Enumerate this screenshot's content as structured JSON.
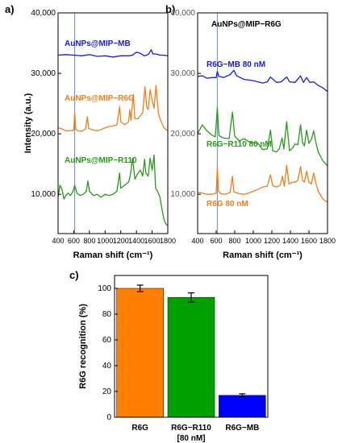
{
  "panels": {
    "a": {
      "label": "a)"
    },
    "b": {
      "label": "b)"
    },
    "c": {
      "label": "c)"
    }
  },
  "chart_data": [
    {
      "type": "line",
      "panel": "a",
      "xlabel": "Raman shift (cm⁻¹)",
      "ylabel": "Intensity (a.u.)",
      "xlim": [
        400,
        1800
      ],
      "ylim": [
        3500,
        40000
      ],
      "x_ticks": [
        400,
        600,
        800,
        1000,
        1200,
        1400,
        1600,
        1800
      ],
      "y_ticks": [
        10000,
        20000,
        30000,
        40000
      ],
      "y_tick_labels": [
        "10,000",
        "20,000",
        "30,000",
        "40,000"
      ],
      "reference_line_x": 612,
      "series": [
        {
          "name": "AuNPs@MIP−MB",
          "color": "#1a1ae6",
          "x": [
            400,
            500,
            600,
            700,
            800,
            900,
            1000,
            1100,
            1200,
            1300,
            1350,
            1400,
            1450,
            1500,
            1550,
            1590,
            1610,
            1650,
            1700,
            1750,
            1800
          ],
          "y": [
            33000,
            33100,
            33000,
            32900,
            33100,
            32800,
            32900,
            32700,
            32900,
            32900,
            33000,
            33500,
            33300,
            32900,
            33100,
            33900,
            33200,
            33200,
            33000,
            33000,
            32900
          ]
        },
        {
          "name": "AuNPs@MIP−R6G",
          "color": "#f07f1a",
          "x": [
            400,
            450,
            500,
            550,
            600,
            612,
            625,
            650,
            700,
            750,
            775,
            790,
            850,
            900,
            950,
            1000,
            1050,
            1100,
            1150,
            1185,
            1200,
            1250,
            1300,
            1315,
            1330,
            1360,
            1380,
            1420,
            1450,
            1480,
            1510,
            1530,
            1550,
            1575,
            1600,
            1625,
            1650,
            1680,
            1700,
            1750,
            1800
          ],
          "y": [
            21000,
            20800,
            20500,
            20500,
            20600,
            23500,
            20800,
            20500,
            20400,
            20800,
            22800,
            20900,
            20600,
            20500,
            20700,
            21000,
            21200,
            21300,
            21500,
            24500,
            22000,
            21500,
            22000,
            24000,
            22200,
            26500,
            22500,
            22500,
            23000,
            23500,
            27800,
            24500,
            24000,
            27300,
            25500,
            24200,
            28000,
            23500,
            22500,
            21000,
            20500
          ]
        },
        {
          "name": "AuNPs@MIP−R110",
          "color": "#2a9a1a",
          "x": [
            400,
            425,
            450,
            475,
            500,
            530,
            560,
            590,
            612,
            640,
            680,
            720,
            760,
            780,
            800,
            850,
            900,
            950,
            1000,
            1050,
            1100,
            1150,
            1185,
            1200,
            1250,
            1300,
            1320,
            1350,
            1380,
            1420,
            1450,
            1480,
            1505,
            1520,
            1550,
            1575,
            1600,
            1625,
            1645,
            1670,
            1700,
            1720,
            1740,
            1760,
            1780,
            1800
          ],
          "y": [
            9500,
            11500,
            10800,
            9200,
            9800,
            10200,
            9800,
            10500,
            11500,
            10200,
            9800,
            10000,
            10500,
            12200,
            10500,
            9800,
            10000,
            9500,
            10000,
            9800,
            10000,
            10500,
            13500,
            11000,
            11500,
            12000,
            13000,
            16000,
            12500,
            13500,
            14000,
            13000,
            15800,
            13500,
            13000,
            16000,
            14000,
            16500,
            11000,
            10500,
            9500,
            8000,
            6500,
            5500,
            5000,
            4800
          ]
        }
      ]
    },
    {
      "type": "line",
      "panel": "b",
      "title": "AuNPs@MIP−R6G",
      "xlabel": "Raman shift (cm⁻¹)",
      "xlim": [
        400,
        1800
      ],
      "ylim": [
        3500,
        40000
      ],
      "x_ticks": [
        400,
        600,
        800,
        1000,
        1200,
        1400,
        1600,
        1800
      ],
      "y_ticks": [
        10000,
        20000,
        30000,
        40000
      ],
      "y_tick_labels": [
        "10,000",
        "20,000",
        "30,000",
        "40,000"
      ],
      "reference_line_x": 612,
      "series": [
        {
          "name": "R6G−MB 80 nM",
          "color": "#1a1ae6",
          "x": [
            400,
            450,
            500,
            550,
            600,
            612,
            630,
            680,
            750,
            790,
            820,
            900,
            1000,
            1100,
            1150,
            1185,
            1250,
            1300,
            1360,
            1390,
            1450,
            1510,
            1540,
            1575,
            1610,
            1650,
            1700,
            1750,
            1800
          ],
          "y": [
            29500,
            29600,
            29200,
            29300,
            29300,
            30300,
            29500,
            29300,
            29800,
            30500,
            29600,
            29000,
            28800,
            28400,
            28600,
            29400,
            28500,
            28600,
            29400,
            28600,
            28500,
            29600,
            28500,
            29300,
            28500,
            28600,
            28000,
            27600,
            27000
          ]
        },
        {
          "name": "R6G−R110 80 nM",
          "color": "#2a9a1a",
          "x": [
            400,
            450,
            500,
            550,
            590,
            612,
            630,
            680,
            740,
            775,
            800,
            850,
            900,
            950,
            1000,
            1050,
            1100,
            1150,
            1185,
            1210,
            1250,
            1280,
            1310,
            1330,
            1360,
            1390,
            1420,
            1450,
            1480,
            1510,
            1530,
            1550,
            1575,
            1600,
            1630,
            1650,
            1680,
            1700,
            1750,
            1800
          ],
          "y": [
            20000,
            21500,
            20500,
            19800,
            19500,
            24300,
            19700,
            19300,
            19200,
            23600,
            19600,
            18800,
            19200,
            18700,
            18500,
            18400,
            17400,
            17500,
            20600,
            17200,
            17000,
            17500,
            19300,
            17500,
            22000,
            17200,
            17600,
            18300,
            18200,
            21500,
            18600,
            18000,
            20600,
            18400,
            19200,
            20500,
            18200,
            17000,
            15500,
            14700
          ]
        },
        {
          "name": "R6G 80 nM",
          "color": "#f07f1a",
          "x": [
            400,
            450,
            500,
            550,
            600,
            612,
            625,
            650,
            700,
            750,
            775,
            790,
            850,
            900,
            950,
            1000,
            1050,
            1100,
            1150,
            1185,
            1210,
            1250,
            1290,
            1315,
            1335,
            1360,
            1385,
            1420,
            1450,
            1480,
            1510,
            1530,
            1550,
            1575,
            1600,
            1625,
            1650,
            1680,
            1700,
            1750,
            1800
          ],
          "y": [
            10300,
            10200,
            10000,
            10000,
            10200,
            14500,
            10500,
            10100,
            10000,
            10300,
            13000,
            10400,
            10100,
            10000,
            10200,
            10500,
            10800,
            11200,
            11300,
            13200,
            11400,
            11200,
            11500,
            13000,
            11300,
            14800,
            11700,
            12000,
            12000,
            12300,
            14600,
            12300,
            12000,
            13800,
            12000,
            11700,
            13500,
            11500,
            10500,
            9200,
            8700
          ]
        }
      ]
    },
    {
      "type": "bar",
      "panel": "c",
      "ylabel": "R6G recognition (%)",
      "ylim": [
        0,
        110
      ],
      "y_ticks": [
        0,
        20,
        40,
        60,
        80,
        100
      ],
      "categories": [
        "R6G",
        "R6G−R110\n[80 nM]",
        "R6G−MB"
      ],
      "category_lines": [
        [
          "R6G"
        ],
        [
          "R6G−R110",
          "[80 nM]"
        ],
        [
          "R6G−MB"
        ]
      ],
      "values": [
        100,
        93,
        17
      ],
      "errors": [
        2.5,
        3.5,
        1.2
      ],
      "colors": [
        "#ff8000",
        "#00a000",
        "#0000ff"
      ]
    }
  ]
}
